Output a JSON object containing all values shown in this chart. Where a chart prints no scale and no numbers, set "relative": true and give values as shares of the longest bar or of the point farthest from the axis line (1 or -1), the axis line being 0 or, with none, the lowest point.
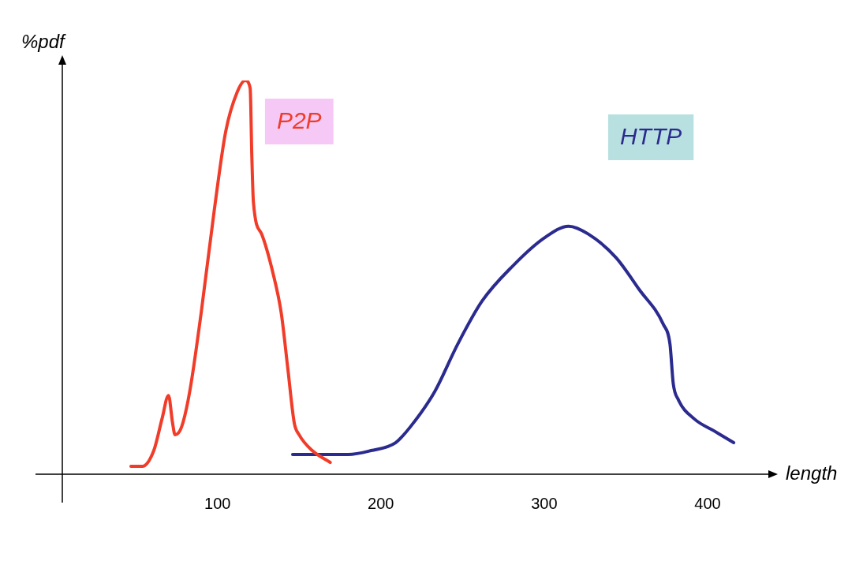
{
  "chart_data": {
    "type": "line",
    "xlabel": "length",
    "ylabel": "%pdf",
    "relative": true,
    "xlim": [
      5,
      443
    ],
    "xticks": [
      100,
      200,
      300,
      400
    ],
    "tick_labels": "x",
    "grid": false,
    "legend": false,
    "marker": "none",
    "line_style": "solid",
    "series": [
      {
        "name": "P2P",
        "color": "#f03c28",
        "x": [
          47,
          54,
          61,
          66,
          70,
          72.5,
          74,
          78,
          83,
          90,
          98,
          105,
          112,
          117,
          120,
          121,
          122,
          127,
          134,
          139,
          143,
          147,
          150,
          158,
          169
        ],
        "values": [
          0.02,
          0.02,
          0.06,
          0.14,
          0.2,
          0.13,
          0.1,
          0.12,
          0.21,
          0.41,
          0.67,
          0.87,
          0.97,
          1,
          0.98,
          0.81,
          0.69,
          0.61,
          0.51,
          0.41,
          0.27,
          0.13,
          0.1,
          0.06,
          0.03
        ]
      },
      {
        "name": "HTTP",
        "color": "#2b2b8f",
        "x": [
          146,
          160,
          180,
          194,
          209,
          218,
          233,
          247,
          262,
          281,
          300,
          315,
          327,
          344,
          358,
          373,
          377,
          379,
          382,
          392,
          404,
          416
        ],
        "values": [
          0.05,
          0.05,
          0.05,
          0.06,
          0.08,
          0.12,
          0.21,
          0.33,
          0.44,
          0.53,
          0.6,
          0.63,
          0.61,
          0.55,
          0.47,
          0.38,
          0.33,
          0.23,
          0.19,
          0.14,
          0.11,
          0.08
        ]
      }
    ]
  }
}
